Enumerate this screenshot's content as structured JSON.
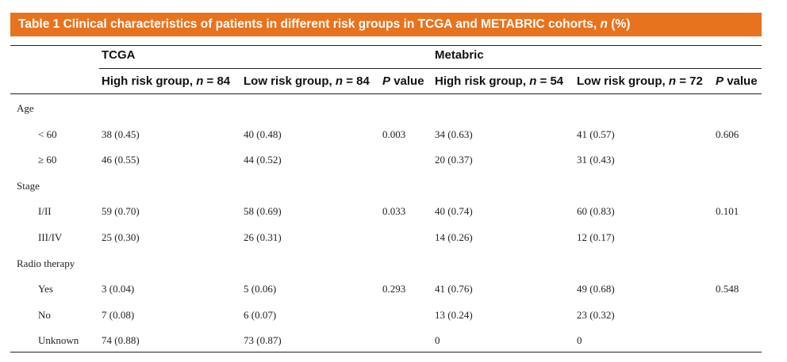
{
  "table": {
    "title_main": "Table 1 Clinical characteristics of patients in different risk groups in TCGA and METABRIC cohorts,",
    "title_n": "n",
    "title_suffix": "(%)",
    "cohorts": [
      "TCGA",
      "Metabric"
    ],
    "columns": [
      {
        "label": "High risk group,",
        "n_italic": "n",
        "n_value": "= 84"
      },
      {
        "label": "Low risk group,",
        "n_italic": "n",
        "n_value": "= 84"
      },
      {
        "label_italic": "P",
        "label_rest": "value"
      },
      {
        "label": "High risk group,",
        "n_italic": "n",
        "n_value": "= 54"
      },
      {
        "label": "Low risk group,",
        "n_italic": "n",
        "n_value": "= 72"
      },
      {
        "label_italic": "P",
        "label_rest": "value"
      }
    ],
    "rows": [
      {
        "label": "Age",
        "group": true,
        "values": [
          "",
          "",
          "",
          "",
          "",
          ""
        ]
      },
      {
        "label": "< 60",
        "values": [
          "38 (0.45)",
          "40 (0.48)",
          "0.003",
          "34 (0.63)",
          "41 (0.57)",
          "0.606"
        ]
      },
      {
        "label": "≥ 60",
        "values": [
          "46 (0.55)",
          "44 (0.52)",
          "",
          "20 (0.37)",
          "31 (0.43)",
          ""
        ]
      },
      {
        "label": "Stage",
        "group": true,
        "values": [
          "",
          "",
          "",
          "",
          "",
          ""
        ]
      },
      {
        "label": "I/II",
        "values": [
          "59 (0.70)",
          "58 (0.69)",
          "0.033",
          "40 (0.74)",
          "60 (0.83)",
          "0.101"
        ]
      },
      {
        "label": "III/IV",
        "values": [
          "25 (0.30)",
          "26 (0.31)",
          "",
          "14 (0.26)",
          "12 (0.17)",
          ""
        ]
      },
      {
        "label": "Radio therapy",
        "group": true,
        "values": [
          "",
          "",
          "",
          "",
          "",
          ""
        ]
      },
      {
        "label": "Yes",
        "values": [
          "3 (0.04)",
          "5 (0.06)",
          "0.293",
          "41 (0.76)",
          "49 (0.68)",
          "0.548"
        ]
      },
      {
        "label": "No",
        "values": [
          "7 (0.08)",
          "6 (0.07)",
          "",
          "13 (0.24)",
          "23 (0.32)",
          ""
        ]
      },
      {
        "label": "Unknown",
        "values": [
          "74 (0.88)",
          "73 (0.87)",
          "",
          "0",
          "0",
          ""
        ]
      }
    ]
  }
}
